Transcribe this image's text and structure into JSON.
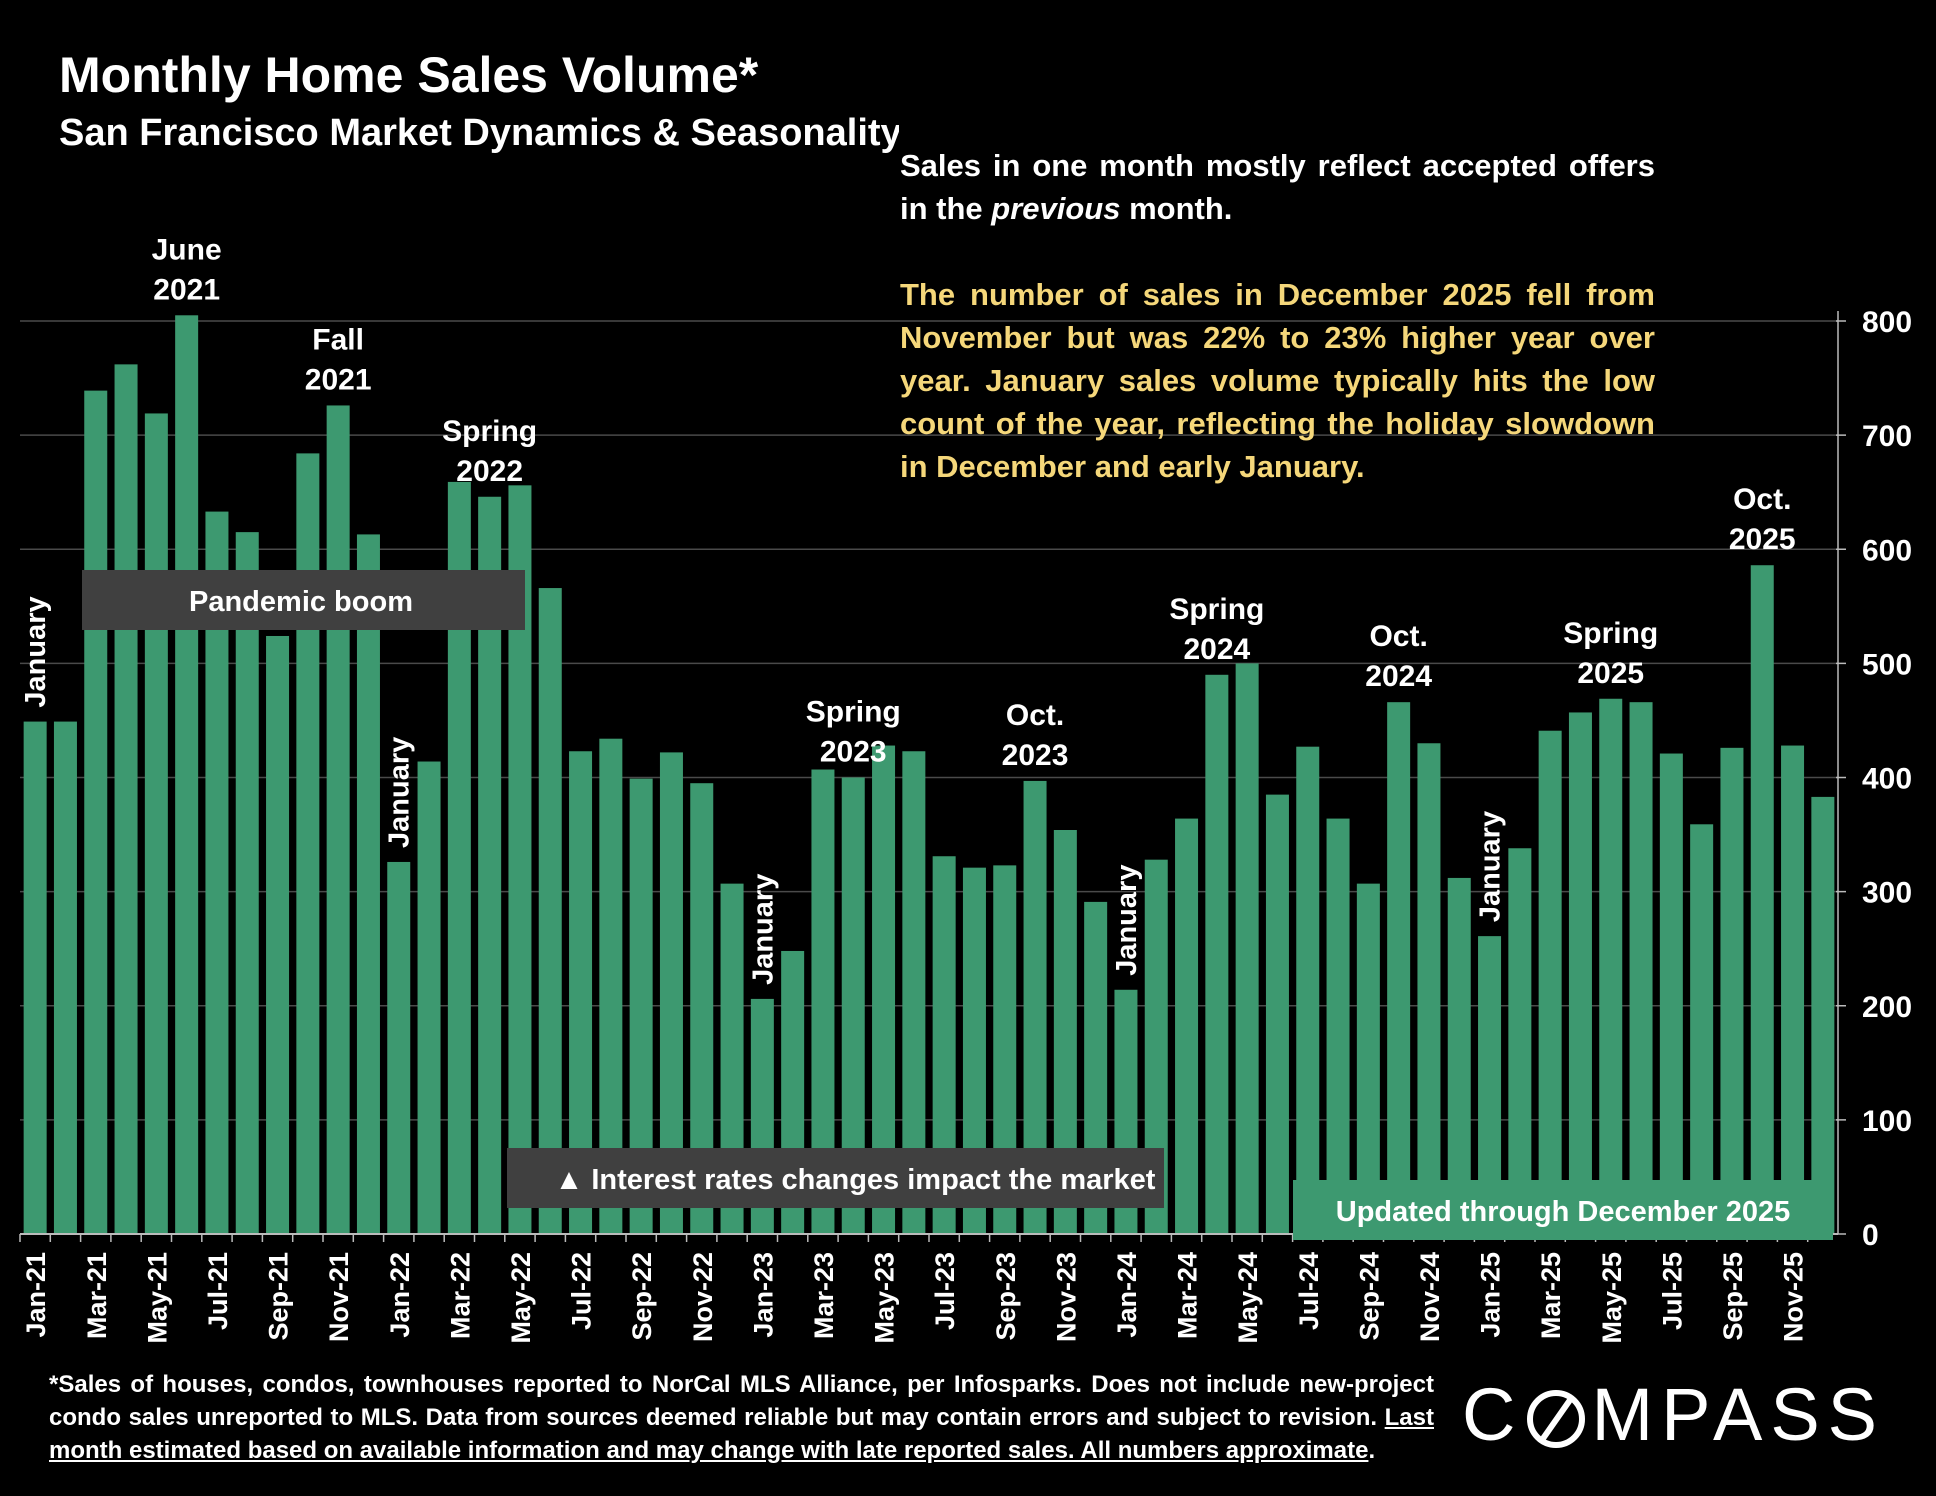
{
  "header": {
    "title": "Monthly Home Sales Volume*",
    "subtitle": "San Francisco Market Dynamics & Seasonality"
  },
  "note": {
    "line1_before": "Sales in one month mostly reflect accepted offers in the ",
    "line1_italic": "previous",
    "line1_after": " month.",
    "highlight": "The number of sales in December 2025 fell from November but was 22% to 23% higher year over year. January sales volume typically hits the low count of the year, reflecting the holiday slowdown in December and early January."
  },
  "footnote": {
    "plain": "*Sales of houses, condos, townhouses reported to NorCal MLS Alliance, per Infosparks. Does not include new-project condo sales unreported to MLS. Data from sources deemed reliable but may contain errors and subject to revision. ",
    "underlined": "Last month estimated based on available information and may change with late reported sales. All numbers approximate",
    "end": "."
  },
  "logo": {
    "before": "C",
    "after": "MPASS"
  },
  "colors": {
    "bar": "#3d9970",
    "gridline": "#4a4a4a",
    "callout_bg": "#404040",
    "highlight_text": "#f5d77a",
    "background": "#000000"
  },
  "chart_data": {
    "type": "bar",
    "title": "Monthly Home Sales Volume*",
    "subtitle": "San Francisco Market Dynamics & Seasonality",
    "ylim": [
      0,
      800
    ],
    "y_ticks": [
      "0",
      "100",
      "200",
      "300",
      "400",
      "500",
      "600",
      "700",
      "800"
    ],
    "y_axis_side": "right",
    "grid": true,
    "categories": [
      "Jan-21",
      "Feb-21",
      "Mar-21",
      "Apr-21",
      "May-21",
      "Jun-21",
      "Jul-21",
      "Aug-21",
      "Sep-21",
      "Oct-21",
      "Nov-21",
      "Dec-21",
      "Jan-22",
      "Feb-22",
      "Mar-22",
      "Apr-22",
      "May-22",
      "Jun-22",
      "Jul-22",
      "Aug-22",
      "Sep-22",
      "Oct-22",
      "Nov-22",
      "Dec-22",
      "Jan-23",
      "Feb-23",
      "Mar-23",
      "Apr-23",
      "May-23",
      "Jun-23",
      "Jul-23",
      "Aug-23",
      "Sep-23",
      "Oct-23",
      "Nov-23",
      "Dec-23",
      "Jan-24",
      "Feb-24",
      "Mar-24",
      "Apr-24",
      "May-24",
      "Jun-24",
      "Jul-24",
      "Aug-24",
      "Sep-24",
      "Oct-24",
      "Nov-24",
      "Dec-24",
      "Jan-25",
      "Feb-25",
      "Mar-25",
      "Apr-25",
      "May-25",
      "Jun-25",
      "Jul-25",
      "Aug-25",
      "Sep-25",
      "Oct-25",
      "Nov-25",
      "Dec-25"
    ],
    "tick_labels": [
      "Jan-21",
      "Mar-21",
      "May-21",
      "Jul-21",
      "Sep-21",
      "Nov-21",
      "Jan-22",
      "Mar-22",
      "May-22",
      "Jul-22",
      "Sep-22",
      "Nov-22",
      "Jan-23",
      "Mar-23",
      "May-23",
      "Jul-23",
      "Sep-23",
      "Nov-23",
      "Jan-24",
      "Mar-24",
      "May-24",
      "Jul-24",
      "Sep-24",
      "Nov-24",
      "Jan-25",
      "Mar-25",
      "May-25",
      "Jul-25",
      "Sep-25",
      "Nov-25"
    ],
    "values": [
      449,
      449,
      739,
      762,
      719,
      805,
      633,
      615,
      524,
      684,
      726,
      613,
      326,
      414,
      659,
      646,
      656,
      566,
      423,
      434,
      399,
      422,
      395,
      307,
      206,
      248,
      407,
      400,
      428,
      423,
      331,
      321,
      323,
      397,
      354,
      291,
      214,
      328,
      364,
      490,
      500,
      385,
      427,
      364,
      307,
      466,
      430,
      312,
      261,
      338,
      441,
      457,
      469,
      466,
      421,
      359,
      426,
      586,
      428,
      383
    ],
    "annotations": [
      {
        "text": [
          "January"
        ],
        "index": 0,
        "rotated": true
      },
      {
        "text": [
          "June",
          "2021"
        ],
        "index": 5
      },
      {
        "text": [
          "Fall",
          "2021"
        ],
        "index": 10
      },
      {
        "text": [
          "January"
        ],
        "index": 12,
        "rotated": true
      },
      {
        "text": [
          "Spring",
          "2022"
        ],
        "index": 15
      },
      {
        "text": [
          "January"
        ],
        "index": 24,
        "rotated": true
      },
      {
        "text": [
          "Spring",
          "2023"
        ],
        "index": 27
      },
      {
        "text": [
          "Oct.",
          "2023"
        ],
        "index": 33
      },
      {
        "text": [
          "January"
        ],
        "index": 36,
        "rotated": true
      },
      {
        "text": [
          "Spring",
          "2024"
        ],
        "index": 39
      },
      {
        "text": [
          "Oct.",
          "2024"
        ],
        "index": 45
      },
      {
        "text": [
          "January"
        ],
        "index": 48,
        "rotated": true
      },
      {
        "text": [
          "Spring",
          "2025"
        ],
        "index": 52
      },
      {
        "text": [
          "Oct.",
          "2025"
        ],
        "index": 57
      }
    ],
    "callouts": [
      {
        "text": "Pandemic boom"
      },
      {
        "text": "▲ Interest rates changes impact the market"
      },
      {
        "text": "Updated through December 2025"
      }
    ]
  }
}
